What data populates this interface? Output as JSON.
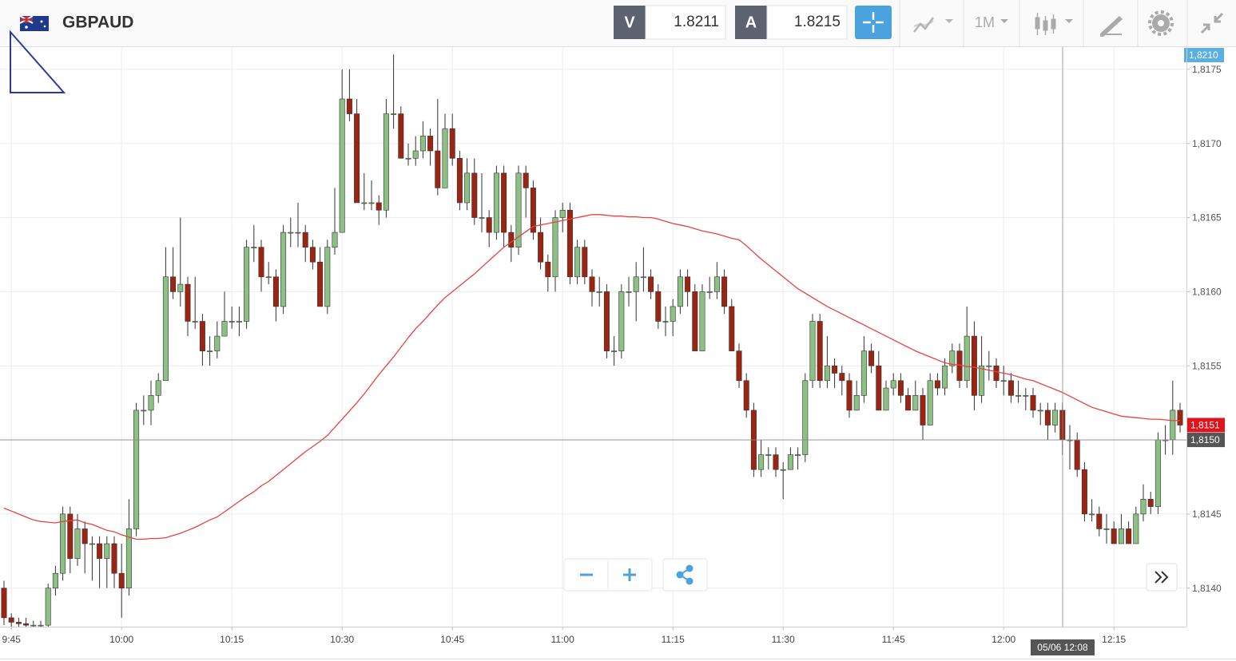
{
  "toolbar": {
    "symbol": "GBPAUD",
    "bid_label": "V",
    "bid": 1.8211,
    "ask_label": "A",
    "ask": 1.8215,
    "timeframe": "1M"
  },
  "chart_data": {
    "type": "candlestick",
    "up_color": "#8cc084",
    "down_color": "#9b2512",
    "ylim": [
      1.81374,
      1.81765
    ],
    "yticks": [
      {
        "value": 1.814,
        "label": "1,8140"
      },
      {
        "value": 1.8145,
        "label": "1,8145"
      },
      {
        "value": 1.815,
        "label": "1,8150"
      },
      {
        "value": 1.8155,
        "label": "1,8155"
      },
      {
        "value": 1.816,
        "label": "1,8160"
      },
      {
        "value": 1.8165,
        "label": "1,8165"
      },
      {
        "value": 1.817,
        "label": "1,8170"
      },
      {
        "value": 1.8175,
        "label": "1,8175"
      }
    ],
    "grid": true,
    "top_label": "1,8210",
    "last_price": {
      "value": 1.8151,
      "label": "1,8151"
    },
    "crosshair": {
      "value": 1.815,
      "label": "1,8150",
      "time_label": "05/06 12:08"
    },
    "categories": [
      null,
      "9:45",
      null,
      null,
      null,
      null,
      null,
      null,
      null,
      null,
      null,
      null,
      null,
      null,
      null,
      null,
      "10:00",
      null,
      null,
      null,
      null,
      null,
      null,
      null,
      null,
      null,
      null,
      null,
      null,
      null,
      null,
      "10:15",
      null,
      null,
      null,
      null,
      null,
      null,
      null,
      null,
      null,
      null,
      null,
      null,
      null,
      null,
      "10:30",
      null,
      null,
      null,
      null,
      null,
      null,
      null,
      null,
      null,
      null,
      null,
      null,
      null,
      null,
      "10:45",
      null,
      null,
      null,
      null,
      null,
      null,
      null,
      null,
      null,
      null,
      null,
      null,
      null,
      null,
      "11:00",
      null,
      null,
      null,
      null,
      null,
      null,
      null,
      null,
      null,
      null,
      null,
      null,
      null,
      null,
      "11:15",
      null,
      null,
      null,
      null,
      null,
      null,
      null,
      null,
      null,
      null,
      null,
      null,
      null,
      null,
      "11:30",
      null,
      null,
      null,
      null,
      null,
      null,
      null,
      null,
      null,
      null,
      null,
      null,
      null,
      null,
      "11:45",
      null,
      null,
      null,
      null,
      null,
      null,
      null,
      null,
      null,
      null,
      null,
      null,
      null,
      null,
      "12:00",
      null,
      null,
      null,
      null,
      null,
      null,
      null,
      null,
      null,
      null,
      null,
      null,
      null,
      null,
      "12:15",
      null,
      null,
      null,
      null,
      null,
      null,
      null,
      null,
      null
    ],
    "candles": [
      [
        1.814,
        1.81405,
        1.81375,
        1.8138
      ],
      [
        1.8138,
        1.81383,
        1.81374,
        1.81377
      ],
      [
        1.81377,
        1.8138,
        1.81374,
        1.81376
      ],
      [
        1.81376,
        1.8138,
        1.81374,
        1.81375
      ],
      [
        1.81375,
        1.81378,
        1.81374,
        1.81375
      ],
      [
        1.81375,
        1.81378,
        1.81374,
        1.81375
      ],
      [
        1.81375,
        1.81403,
        1.81374,
        1.814
      ],
      [
        1.814,
        1.81415,
        1.81395,
        1.8141
      ],
      [
        1.8141,
        1.81455,
        1.81405,
        1.8145
      ],
      [
        1.8145,
        1.81455,
        1.8141,
        1.8142
      ],
      [
        1.8142,
        1.8145,
        1.81415,
        1.8144
      ],
      [
        1.8144,
        1.81445,
        1.8141,
        1.8143
      ],
      [
        1.8143,
        1.81435,
        1.81405,
        1.8143
      ],
      [
        1.8143,
        1.81435,
        1.814,
        1.8142
      ],
      [
        1.8142,
        1.81435,
        1.814,
        1.8143
      ],
      [
        1.8143,
        1.81435,
        1.814,
        1.8141
      ],
      [
        1.8141,
        1.8143,
        1.8138,
        1.814
      ],
      [
        1.814,
        1.8146,
        1.81395,
        1.8144
      ],
      [
        1.8144,
        1.81525,
        1.81435,
        1.8152
      ],
      [
        1.8152,
        1.8153,
        1.8151,
        1.8152
      ],
      [
        1.8152,
        1.8154,
        1.8151,
        1.8153
      ],
      [
        1.8153,
        1.81545,
        1.81525,
        1.8154
      ],
      [
        1.8154,
        1.8163,
        1.8154,
        1.8161
      ],
      [
        1.8161,
        1.8163,
        1.81595,
        1.816
      ],
      [
        1.816,
        1.8165,
        1.8159,
        1.81605
      ],
      [
        1.81605,
        1.8161,
        1.8157,
        1.8158
      ],
      [
        1.8158,
        1.8161,
        1.81575,
        1.8158
      ],
      [
        1.8158,
        1.81585,
        1.8155,
        1.8156
      ],
      [
        1.8156,
        1.8157,
        1.8155,
        1.8156
      ],
      [
        1.8156,
        1.8158,
        1.81555,
        1.8157
      ],
      [
        1.8157,
        1.816,
        1.8157,
        1.8158
      ],
      [
        1.8158,
        1.8159,
        1.81575,
        1.8158
      ],
      [
        1.8158,
        1.8159,
        1.8157,
        1.8158
      ],
      [
        1.8158,
        1.81635,
        1.81575,
        1.8163
      ],
      [
        1.8163,
        1.81645,
        1.8162,
        1.8163
      ],
      [
        1.8163,
        1.81635,
        1.816,
        1.8161
      ],
      [
        1.8161,
        1.8162,
        1.81605,
        1.8161
      ],
      [
        1.8161,
        1.81615,
        1.8158,
        1.8159
      ],
      [
        1.8159,
        1.81645,
        1.81585,
        1.8164
      ],
      [
        1.8164,
        1.8165,
        1.8163,
        1.8164
      ],
      [
        1.8164,
        1.8166,
        1.8163,
        1.8164
      ],
      [
        1.8164,
        1.81645,
        1.8162,
        1.8163
      ],
      [
        1.8163,
        1.81635,
        1.81615,
        1.8162
      ],
      [
        1.8162,
        1.8163,
        1.8159,
        1.8159
      ],
      [
        1.8159,
        1.81635,
        1.81585,
        1.8163
      ],
      [
        1.8163,
        1.8167,
        1.81625,
        1.8164
      ],
      [
        1.8164,
        1.8175,
        1.8164,
        1.8173
      ],
      [
        1.8173,
        1.8175,
        1.81715,
        1.8172
      ],
      [
        1.8172,
        1.8173,
        1.8166,
        1.8166
      ],
      [
        1.8166,
        1.8168,
        1.81655,
        1.8166
      ],
      [
        1.8166,
        1.81675,
        1.81655,
        1.8166
      ],
      [
        1.8166,
        1.81665,
        1.81645,
        1.81655
      ],
      [
        1.81655,
        1.8173,
        1.8165,
        1.8172
      ],
      [
        1.8172,
        1.8176,
        1.8171,
        1.8172
      ],
      [
        1.8172,
        1.81725,
        1.8169,
        1.8169
      ],
      [
        1.8169,
        1.817,
        1.81685,
        1.8169
      ],
      [
        1.8169,
        1.81705,
        1.81685,
        1.81695
      ],
      [
        1.81695,
        1.81715,
        1.8169,
        1.81705
      ],
      [
        1.81705,
        1.8171,
        1.81685,
        1.81695
      ],
      [
        1.81695,
        1.8173,
        1.81665,
        1.8167
      ],
      [
        1.8167,
        1.8172,
        1.8167,
        1.8171
      ],
      [
        1.8171,
        1.8172,
        1.81685,
        1.8169
      ],
      [
        1.8169,
        1.81695,
        1.81655,
        1.8166
      ],
      [
        1.8166,
        1.8169,
        1.81655,
        1.8168
      ],
      [
        1.8168,
        1.8169,
        1.81645,
        1.8165
      ],
      [
        1.8165,
        1.8168,
        1.8164,
        1.8165
      ],
      [
        1.8165,
        1.81655,
        1.8163,
        1.8164
      ],
      [
        1.8164,
        1.81685,
        1.81635,
        1.8168
      ],
      [
        1.8168,
        1.81685,
        1.8163,
        1.8164
      ],
      [
        1.8164,
        1.81645,
        1.8162,
        1.8163
      ],
      [
        1.8163,
        1.81685,
        1.81625,
        1.8168
      ],
      [
        1.8168,
        1.81685,
        1.8165,
        1.8167
      ],
      [
        1.8167,
        1.81675,
        1.81635,
        1.8164
      ],
      [
        1.8164,
        1.8165,
        1.81615,
        1.8162
      ],
      [
        1.8162,
        1.81625,
        1.816,
        1.8161
      ],
      [
        1.8161,
        1.81655,
        1.816,
        1.8165
      ],
      [
        1.8165,
        1.8166,
        1.8164,
        1.81655
      ],
      [
        1.81655,
        1.8166,
        1.81605,
        1.8161
      ],
      [
        1.8161,
        1.81635,
        1.81605,
        1.8163
      ],
      [
        1.8163,
        1.81635,
        1.81605,
        1.8161
      ],
      [
        1.8161,
        1.81615,
        1.8159,
        1.816
      ],
      [
        1.816,
        1.8161,
        1.8159,
        1.816
      ],
      [
        1.816,
        1.81605,
        1.81555,
        1.8156
      ],
      [
        1.8156,
        1.8157,
        1.8155,
        1.8156
      ],
      [
        1.8156,
        1.81605,
        1.81555,
        1.816
      ],
      [
        1.816,
        1.8161,
        1.8159,
        1.816
      ],
      [
        1.816,
        1.8162,
        1.8158,
        1.8161
      ],
      [
        1.8161,
        1.8163,
        1.816,
        1.8161
      ],
      [
        1.8161,
        1.81615,
        1.81595,
        1.816
      ],
      [
        1.816,
        1.81605,
        1.81575,
        1.8158
      ],
      [
        1.8158,
        1.8159,
        1.8157,
        1.8158
      ],
      [
        1.8158,
        1.81595,
        1.8157,
        1.8159
      ],
      [
        1.8159,
        1.81615,
        1.81585,
        1.8161
      ],
      [
        1.8161,
        1.81615,
        1.8159,
        1.816
      ],
      [
        1.816,
        1.81605,
        1.8156,
        1.8156
      ],
      [
        1.8156,
        1.81605,
        1.8156,
        1.816
      ],
      [
        1.816,
        1.8161,
        1.81595,
        1.816
      ],
      [
        1.816,
        1.8162,
        1.81595,
        1.8161
      ],
      [
        1.8161,
        1.81615,
        1.81585,
        1.8159
      ],
      [
        1.8159,
        1.81595,
        1.8156,
        1.8156
      ],
      [
        1.8156,
        1.81565,
        1.81535,
        1.8154
      ],
      [
        1.8154,
        1.81545,
        1.81515,
        1.8152
      ],
      [
        1.8152,
        1.81525,
        1.81475,
        1.8148
      ],
      [
        1.8148,
        1.815,
        1.81475,
        1.8149
      ],
      [
        1.8149,
        1.81495,
        1.8148,
        1.8149
      ],
      [
        1.8149,
        1.81495,
        1.81475,
        1.8148
      ],
      [
        1.8148,
        1.81485,
        1.8146,
        1.8148
      ],
      [
        1.8148,
        1.81495,
        1.8148,
        1.8149
      ],
      [
        1.8149,
        1.81495,
        1.8148,
        1.8149
      ],
      [
        1.8149,
        1.81545,
        1.81485,
        1.8154
      ],
      [
        1.8154,
        1.81585,
        1.81535,
        1.8158
      ],
      [
        1.8158,
        1.81585,
        1.81535,
        1.8154
      ],
      [
        1.8154,
        1.8157,
        1.81535,
        1.8155
      ],
      [
        1.8155,
        1.81555,
        1.81535,
        1.81545
      ],
      [
        1.81545,
        1.8155,
        1.8153,
        1.8154
      ],
      [
        1.8154,
        1.81545,
        1.81515,
        1.8152
      ],
      [
        1.8152,
        1.8154,
        1.8152,
        1.8153
      ],
      [
        1.8153,
        1.8157,
        1.81525,
        1.8156
      ],
      [
        1.8156,
        1.81565,
        1.81545,
        1.8155
      ],
      [
        1.8155,
        1.8156,
        1.8152,
        1.8152
      ],
      [
        1.8152,
        1.8154,
        1.8152,
        1.81535
      ],
      [
        1.81535,
        1.81545,
        1.8153,
        1.8154
      ],
      [
        1.8154,
        1.81545,
        1.81525,
        1.8153
      ],
      [
        1.8153,
        1.81535,
        1.8152,
        1.8152
      ],
      [
        1.8152,
        1.8154,
        1.8152,
        1.8153
      ],
      [
        1.8153,
        1.81535,
        1.815,
        1.8151
      ],
      [
        1.8151,
        1.81545,
        1.8151,
        1.8154
      ],
      [
        1.8154,
        1.81545,
        1.8153,
        1.81535
      ],
      [
        1.81535,
        1.81555,
        1.8153,
        1.8155
      ],
      [
        1.8155,
        1.81565,
        1.81545,
        1.8156
      ],
      [
        1.8156,
        1.81565,
        1.81535,
        1.8154
      ],
      [
        1.8154,
        1.8159,
        1.81535,
        1.8157
      ],
      [
        1.8157,
        1.8158,
        1.8152,
        1.8153
      ],
      [
        1.8153,
        1.8157,
        1.81525,
        1.8155
      ],
      [
        1.8155,
        1.8156,
        1.8154,
        1.8155
      ],
      [
        1.8155,
        1.81555,
        1.81535,
        1.8154
      ],
      [
        1.8154,
        1.8155,
        1.8153,
        1.8154
      ],
      [
        1.8154,
        1.81545,
        1.81525,
        1.8153
      ],
      [
        1.8153,
        1.8154,
        1.81525,
        1.8153
      ],
      [
        1.8153,
        1.81535,
        1.8152,
        1.8153
      ],
      [
        1.8153,
        1.81535,
        1.81515,
        1.8152
      ],
      [
        1.8152,
        1.81525,
        1.8151,
        1.8152
      ],
      [
        1.8152,
        1.81525,
        1.815,
        1.8151
      ],
      [
        1.8151,
        1.81525,
        1.81505,
        1.8152
      ],
      [
        1.8152,
        1.81525,
        1.8149,
        1.815
      ],
      [
        1.815,
        1.8151,
        1.8148,
        1.815
      ],
      [
        1.815,
        1.81505,
        1.81475,
        1.8148
      ],
      [
        1.8148,
        1.81485,
        1.81445,
        1.8145
      ],
      [
        1.8145,
        1.8146,
        1.81445,
        1.8145
      ],
      [
        1.8145,
        1.81455,
        1.81435,
        1.8144
      ],
      [
        1.8144,
        1.8145,
        1.8143,
        1.8144
      ],
      [
        1.8144,
        1.81445,
        1.8143,
        1.8143
      ],
      [
        1.8143,
        1.8145,
        1.8143,
        1.8144
      ],
      [
        1.8144,
        1.81445,
        1.8143,
        1.8143
      ],
      [
        1.8143,
        1.81455,
        1.8143,
        1.8145
      ],
      [
        1.8145,
        1.8147,
        1.81445,
        1.8146
      ],
      [
        1.8146,
        1.81465,
        1.8145,
        1.81455
      ],
      [
        1.81455,
        1.81505,
        1.8145,
        1.815
      ],
      [
        1.815,
        1.8151,
        1.8149,
        1.815
      ],
      [
        1.815,
        1.8154,
        1.8149,
        1.8152
      ],
      [
        1.8152,
        1.81525,
        1.81505,
        1.8151
      ]
    ],
    "moving_average": {
      "color": "#e8423f",
      "values": [
        1.81454,
        1.81452,
        1.8145,
        1.81448,
        1.81446,
        1.81445,
        1.814445,
        1.81444,
        1.81445,
        1.814455,
        1.81446,
        1.81444,
        1.81443,
        1.81441,
        1.81439,
        1.81438,
        1.81436,
        1.814345,
        1.81433,
        1.81433,
        1.814335,
        1.814335,
        1.81434,
        1.814355,
        1.81437,
        1.81439,
        1.81441,
        1.814435,
        1.81446,
        1.81448,
        1.814515,
        1.81455,
        1.814585,
        1.81462,
        1.81465,
        1.81469,
        1.81472,
        1.81476,
        1.8148,
        1.81484,
        1.81488,
        1.81492,
        1.814955,
        1.81499,
        1.81503,
        1.815085,
        1.81514,
        1.815195,
        1.81525,
        1.81531,
        1.815375,
        1.81544,
        1.8155,
        1.81556,
        1.815625,
        1.81569,
        1.81575,
        1.8158,
        1.815855,
        1.81591,
        1.81596,
        1.816,
        1.81604,
        1.81608,
        1.81612,
        1.816165,
        1.81621,
        1.816255,
        1.8163,
        1.816335,
        1.81637,
        1.816405,
        1.81644,
        1.81645,
        1.81646,
        1.81647,
        1.81648,
        1.81649,
        1.8165,
        1.81651,
        1.81652,
        1.81652,
        1.816515,
        1.81651,
        1.81651,
        1.816505,
        1.816505,
        1.8165,
        1.8165,
        1.81649,
        1.816475,
        1.81646,
        1.81645,
        1.81644,
        1.816425,
        1.81641,
        1.8164,
        1.81639,
        1.816375,
        1.81636,
        1.81635,
        1.81631,
        1.816265,
        1.81622,
        1.81618,
        1.81614,
        1.8161,
        1.81606,
        1.81602,
        1.81599,
        1.81596,
        1.81593,
        1.8159,
        1.815875,
        1.81585,
        1.815825,
        1.8158,
        1.815775,
        1.81575,
        1.815725,
        1.8157,
        1.815675,
        1.81565,
        1.815625,
        1.8156,
        1.81558,
        1.81556,
        1.81554,
        1.81552,
        1.81551,
        1.815505,
        1.815495,
        1.81549,
        1.81548,
        1.81547,
        1.81546,
        1.81545,
        1.81544,
        1.815425,
        1.81541,
        1.8154,
        1.81538,
        1.81536,
        1.81534,
        1.81532,
        1.815295,
        1.81527,
        1.815245,
        1.81522,
        1.815205,
        1.81519,
        1.815175,
        1.81516,
        1.815155,
        1.81515,
        1.815145,
        1.81514,
        1.81514,
        1.815135,
        1.81513,
        1.81513
      ]
    }
  }
}
